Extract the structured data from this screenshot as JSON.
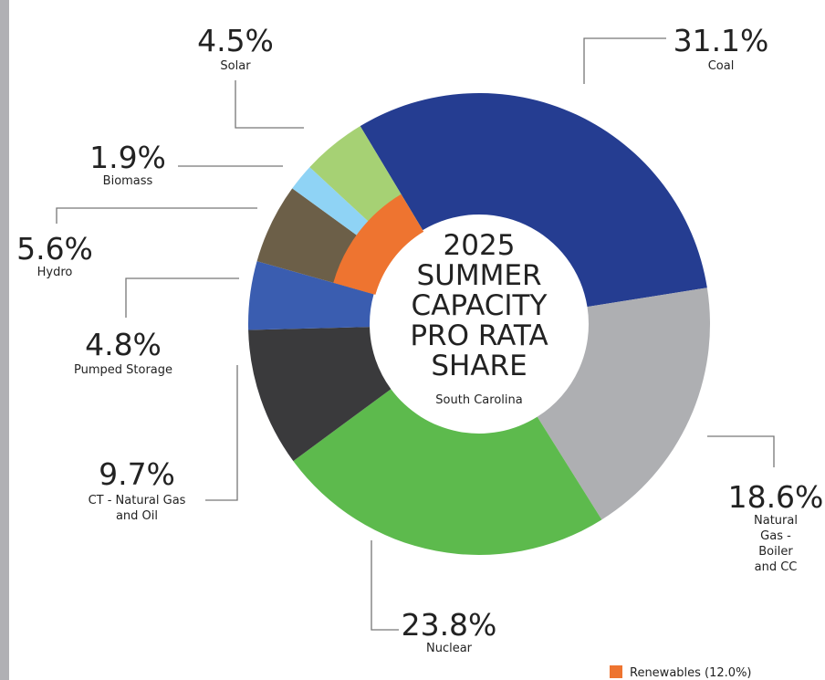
{
  "chart_data": {
    "type": "donut",
    "title_lines": [
      "2025",
      "SUMMER",
      "CAPACITY",
      "PRO RATA",
      "SHARE"
    ],
    "subtitle": "South Carolina",
    "categories": [
      "Coal",
      "Natural Gas -\nBoiler and CC",
      "Nuclear",
      "CT - Natural Gas\nand Oil",
      "Pumped Storage",
      "Hydro",
      "Biomass",
      "Solar"
    ],
    "values": [
      31.1,
      18.6,
      23.8,
      9.7,
      4.8,
      5.6,
      1.9,
      4.5
    ],
    "value_labels": [
      "31.1%",
      "18.6%",
      "23.8%",
      "9.7%",
      "4.8%",
      "5.6%",
      "1.9%",
      "4.5%"
    ],
    "colors": [
      "#253d91",
      "#aeafb2",
      "#5dba4d",
      "#3a3a3c",
      "#3a5db0",
      "#6c5f48",
      "#8fd3f5",
      "#a6d174"
    ],
    "inner_ring": {
      "value": 12.0,
      "label": "Renewables (12.0%)",
      "color": "#ee7430"
    }
  }
}
